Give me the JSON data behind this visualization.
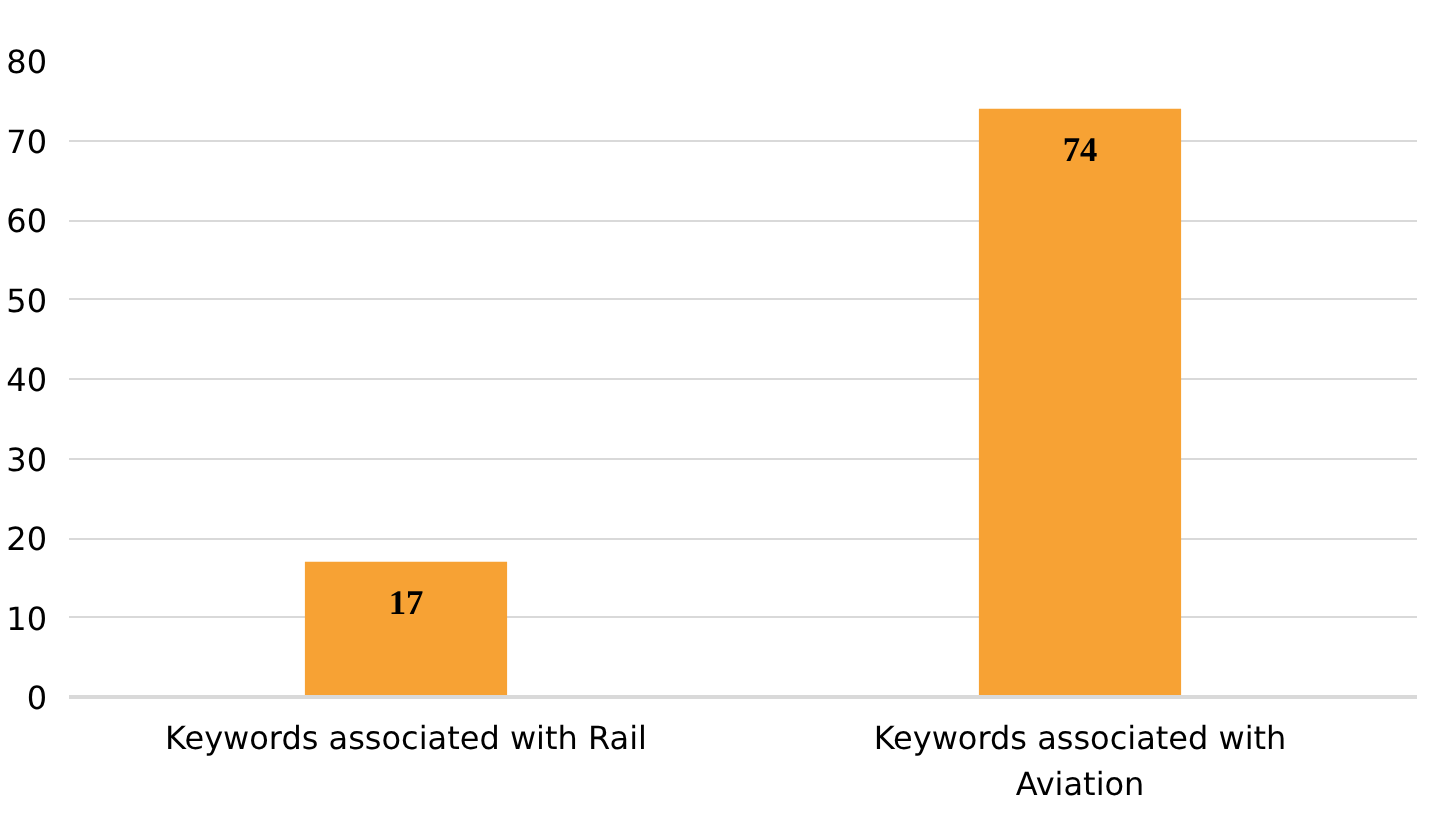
{
  "chart_data": {
    "type": "bar",
    "categories": [
      "Keywords associated with Rail",
      "Keywords associated with Aviation"
    ],
    "values": [
      17,
      74
    ],
    "color": "#f7a234",
    "ylim": [
      0,
      80
    ],
    "yticks": [
      0,
      10,
      20,
      30,
      40,
      50,
      60,
      70,
      80
    ],
    "grid": "y",
    "data_labels": true
  }
}
